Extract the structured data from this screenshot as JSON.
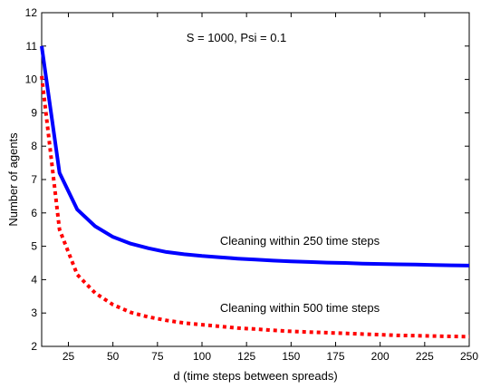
{
  "chart_data": {
    "type": "line",
    "title": "",
    "xlabel": "d (time steps between spreads)",
    "ylabel": "Number of agents",
    "xlim": [
      10,
      250
    ],
    "ylim": [
      2,
      12
    ],
    "xticks": [
      25,
      50,
      75,
      100,
      125,
      150,
      175,
      200,
      225,
      250
    ],
    "yticks": [
      2,
      3,
      4,
      5,
      6,
      7,
      8,
      9,
      10,
      11,
      12
    ],
    "grid": false,
    "legend": "none",
    "annotations": [
      {
        "id": "params",
        "text": "S = 1000, Psi = 0.1"
      },
      {
        "id": "label250",
        "text": "Cleaning within 250 time steps"
      },
      {
        "id": "label500",
        "text": "Cleaning within 500 time steps"
      }
    ],
    "series": [
      {
        "style": "solid",
        "color": "#0000ff",
        "x": [
          10,
          20,
          30,
          40,
          50,
          60,
          70,
          80,
          90,
          100,
          110,
          120,
          130,
          140,
          150,
          160,
          170,
          180,
          190,
          200,
          210,
          220,
          230,
          240,
          250
        ],
        "y": [
          11.0,
          7.2,
          6.1,
          5.6,
          5.28,
          5.08,
          4.94,
          4.83,
          4.76,
          4.71,
          4.67,
          4.63,
          4.6,
          4.57,
          4.55,
          4.53,
          4.51,
          4.5,
          4.48,
          4.47,
          4.46,
          4.45,
          4.44,
          4.43,
          4.42
        ]
      },
      {
        "style": "dotted",
        "color": "#ff0000",
        "x": [
          10,
          20,
          30,
          40,
          50,
          60,
          70,
          80,
          90,
          100,
          110,
          120,
          130,
          140,
          150,
          160,
          170,
          180,
          190,
          200,
          210,
          220,
          230,
          240,
          250
        ],
        "y": [
          10.1,
          5.5,
          4.15,
          3.6,
          3.25,
          3.02,
          2.88,
          2.78,
          2.7,
          2.65,
          2.6,
          2.55,
          2.52,
          2.48,
          2.45,
          2.43,
          2.41,
          2.39,
          2.37,
          2.35,
          2.33,
          2.32,
          2.31,
          2.3,
          2.29
        ]
      }
    ]
  }
}
